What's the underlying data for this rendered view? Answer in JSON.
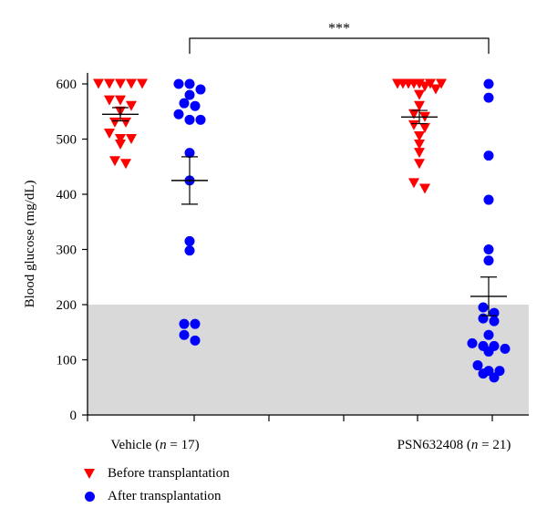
{
  "chart_data": {
    "type": "scatter",
    "ylabel": "Blood glucose (mg/dL)",
    "ylim": [
      0,
      620
    ],
    "yticks": [
      0,
      100,
      200,
      300,
      400,
      500,
      600
    ],
    "shaded_region": {
      "y_from": 0,
      "y_to": 200,
      "color": "#d9d9d9"
    },
    "groups": [
      {
        "label": "Vehicle",
        "n_symbol": "n",
        "n_value": "= 17"
      },
      {
        "label": "PSN632408",
        "n_symbol": "n",
        "n_value": "= 21"
      }
    ],
    "significance": {
      "text": "***",
      "between": [
        "Vehicle",
        "PSN632408"
      ]
    },
    "series": [
      {
        "name": "Before transplantation",
        "marker": "triangle-down",
        "color": "#ff0000",
        "groups": [
          {
            "group": "Vehicle",
            "values": [
              600,
              600,
              600,
              600,
              600,
              570,
              570,
              560,
              550,
              530,
              530,
              510,
              500,
              500,
              490,
              460,
              455
            ],
            "mean": 545,
            "sem": 12
          },
          {
            "group": "PSN632408",
            "values": [
              600,
              600,
              600,
              600,
              600,
              600,
              600,
              595,
              590,
              580,
              560,
              545,
              540,
              525,
              520,
              505,
              490,
              475,
              455,
              420,
              410
            ],
            "mean": 540,
            "sem": 12
          }
        ]
      },
      {
        "name": "After transplantation",
        "marker": "circle",
        "color": "#0000ff",
        "groups": [
          {
            "group": "Vehicle",
            "values": [
              600,
              600,
              590,
              580,
              565,
              560,
              545,
              535,
              535,
              475,
              425,
              315,
              298,
              165,
              165,
              145,
              135
            ],
            "mean": 425,
            "sem": 43
          },
          {
            "group": "PSN632408",
            "values": [
              600,
              575,
              470,
              390,
              300,
              280,
              195,
              185,
              175,
              170,
              145,
              130,
              125,
              125,
              120,
              115,
              90,
              80,
              80,
              75,
              68
            ],
            "mean": 215,
            "sem": 35
          }
        ]
      }
    ]
  }
}
